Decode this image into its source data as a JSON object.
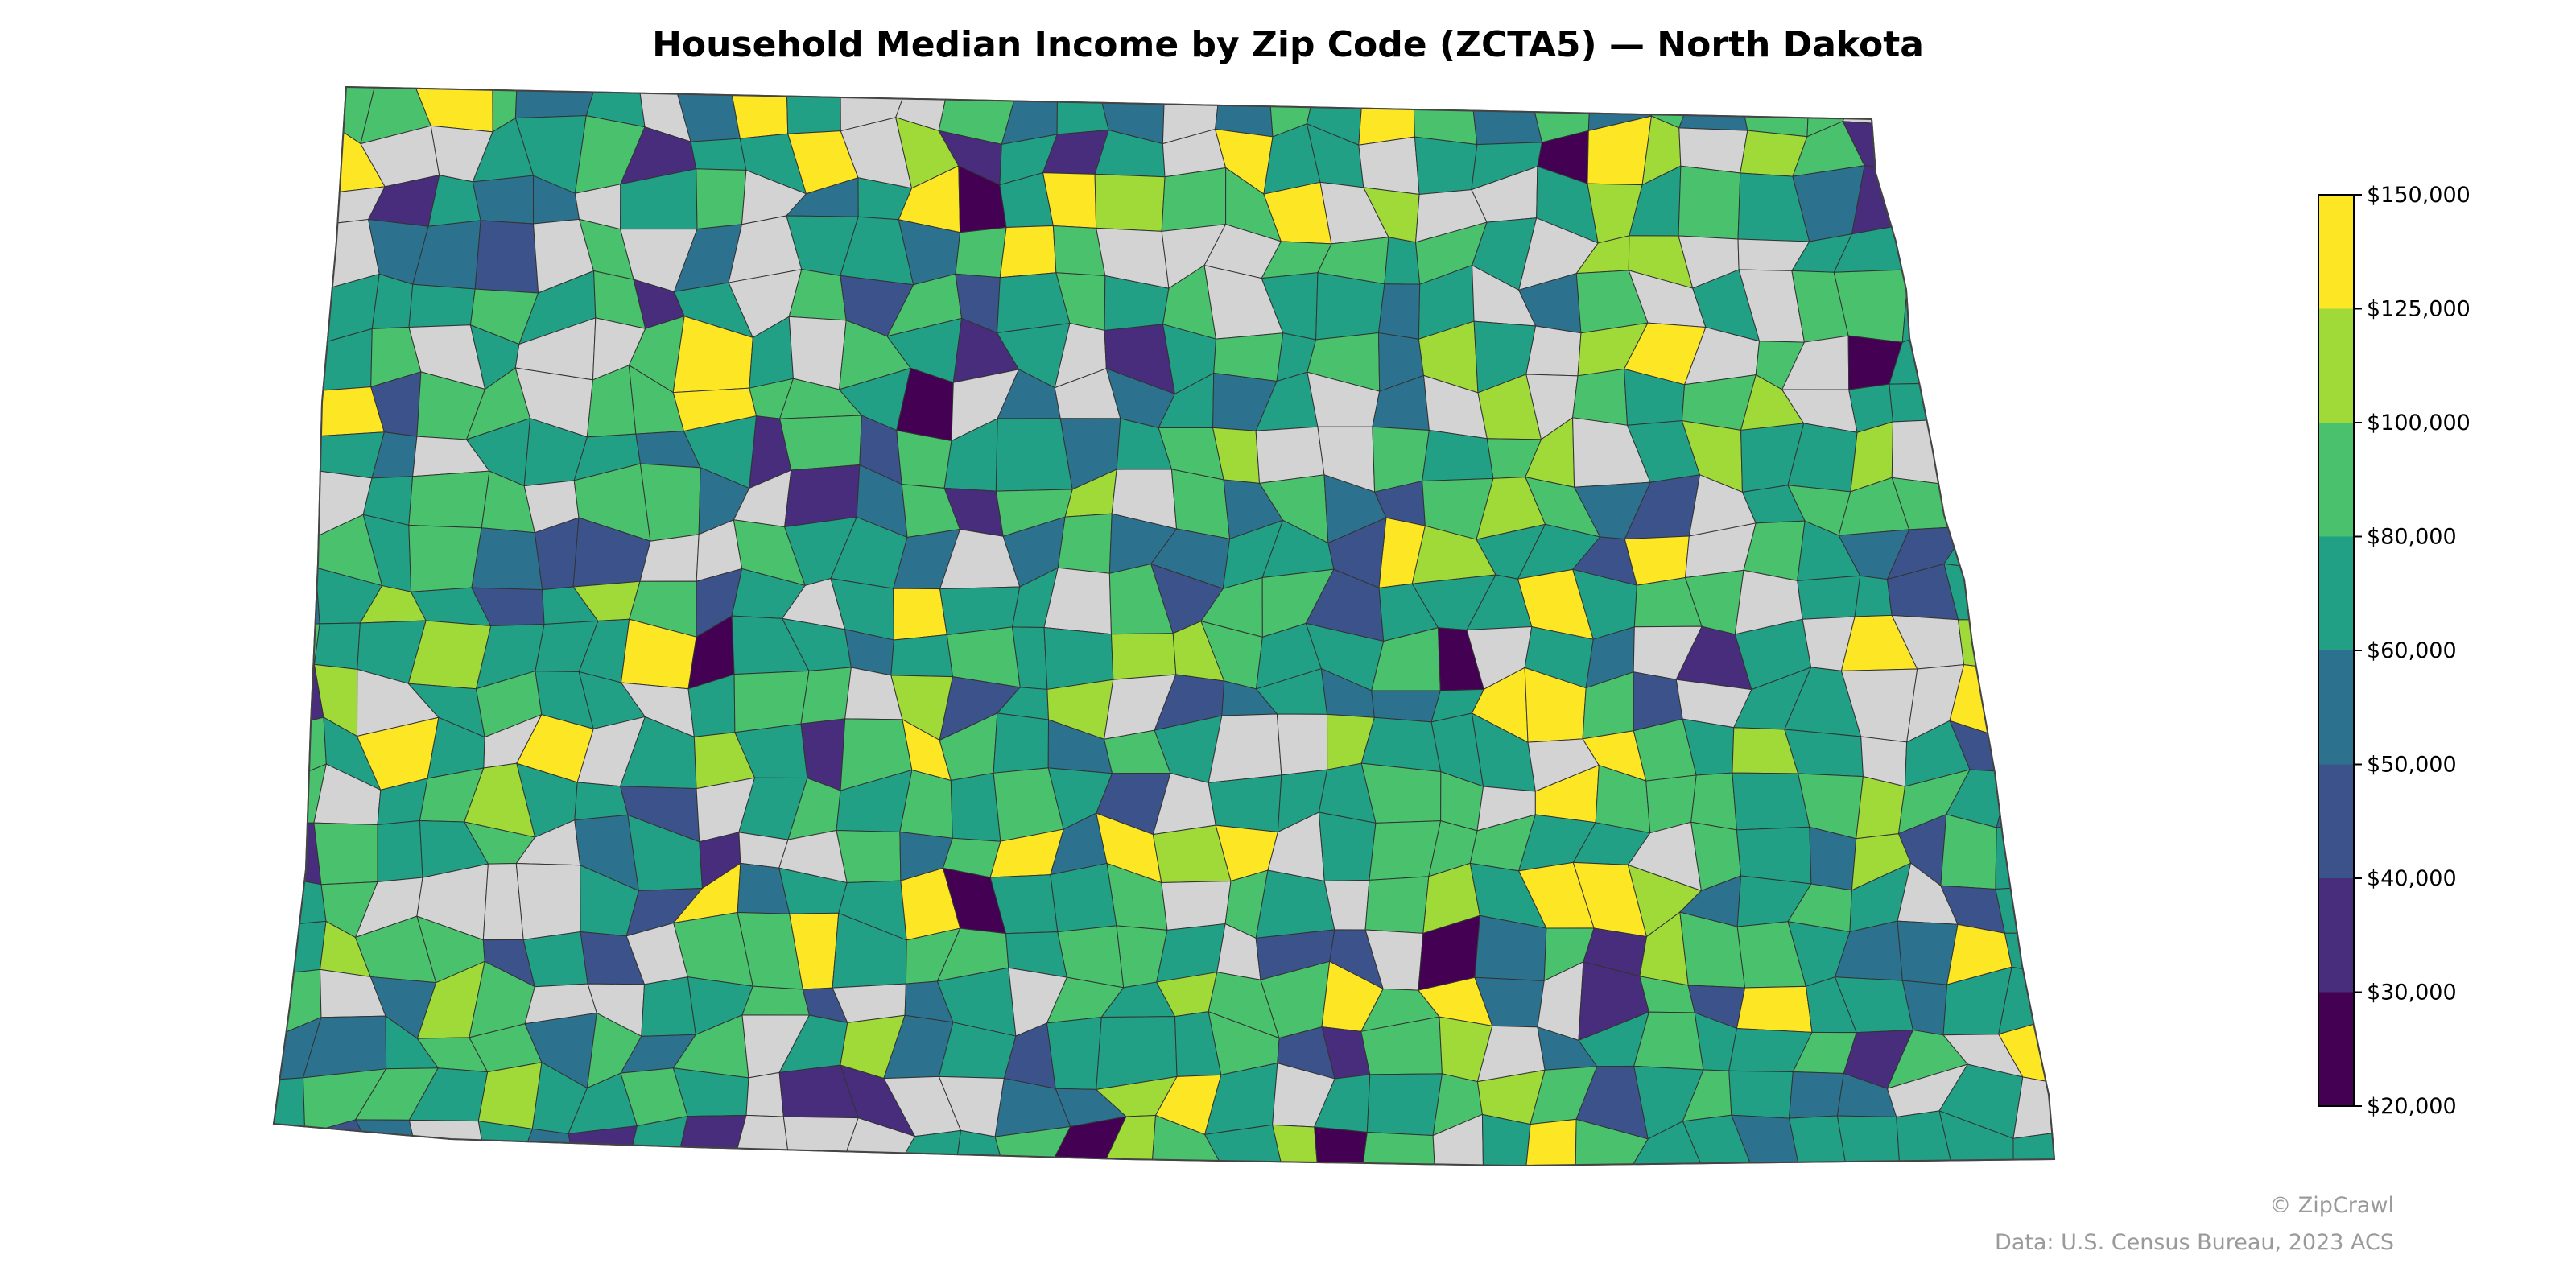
{
  "title": "Household Median Income by Zip Code (ZCTA5) — North Dakota",
  "watermark": "© ZipCrawl",
  "source": "Data: U.S. Census Bureau, 2023 ACS",
  "colorbar": {
    "min": 20000,
    "max": 150000,
    "ticks": [
      {
        "value": 150000,
        "label": "$150,000"
      },
      {
        "value": 125000,
        "label": "$125,000"
      },
      {
        "value": 100000,
        "label": "$100,000"
      },
      {
        "value": 80000,
        "label": "$80,000"
      },
      {
        "value": 60000,
        "label": "$60,000"
      },
      {
        "value": 50000,
        "label": "$50,000"
      },
      {
        "value": 40000,
        "label": "$40,000"
      },
      {
        "value": 30000,
        "label": "$30,000"
      },
      {
        "value": 20000,
        "label": "$20,000"
      }
    ],
    "bins": [
      {
        "from": 20000,
        "to": 30000,
        "color": "#440154"
      },
      {
        "from": 30000,
        "to": 40000,
        "color": "#472d7b"
      },
      {
        "from": 40000,
        "to": 50000,
        "color": "#3b528b"
      },
      {
        "from": 50000,
        "to": 60000,
        "color": "#2c728e"
      },
      {
        "from": 60000,
        "to": 80000,
        "color": "#21a085"
      },
      {
        "from": 80000,
        "to": 100000,
        "color": "#4ac16d"
      },
      {
        "from": 100000,
        "to": 125000,
        "color": "#a0da39"
      },
      {
        "from": 125000,
        "to": 150000,
        "color": "#fde725"
      }
    ]
  },
  "no_data_color": "#d3d3d3"
}
